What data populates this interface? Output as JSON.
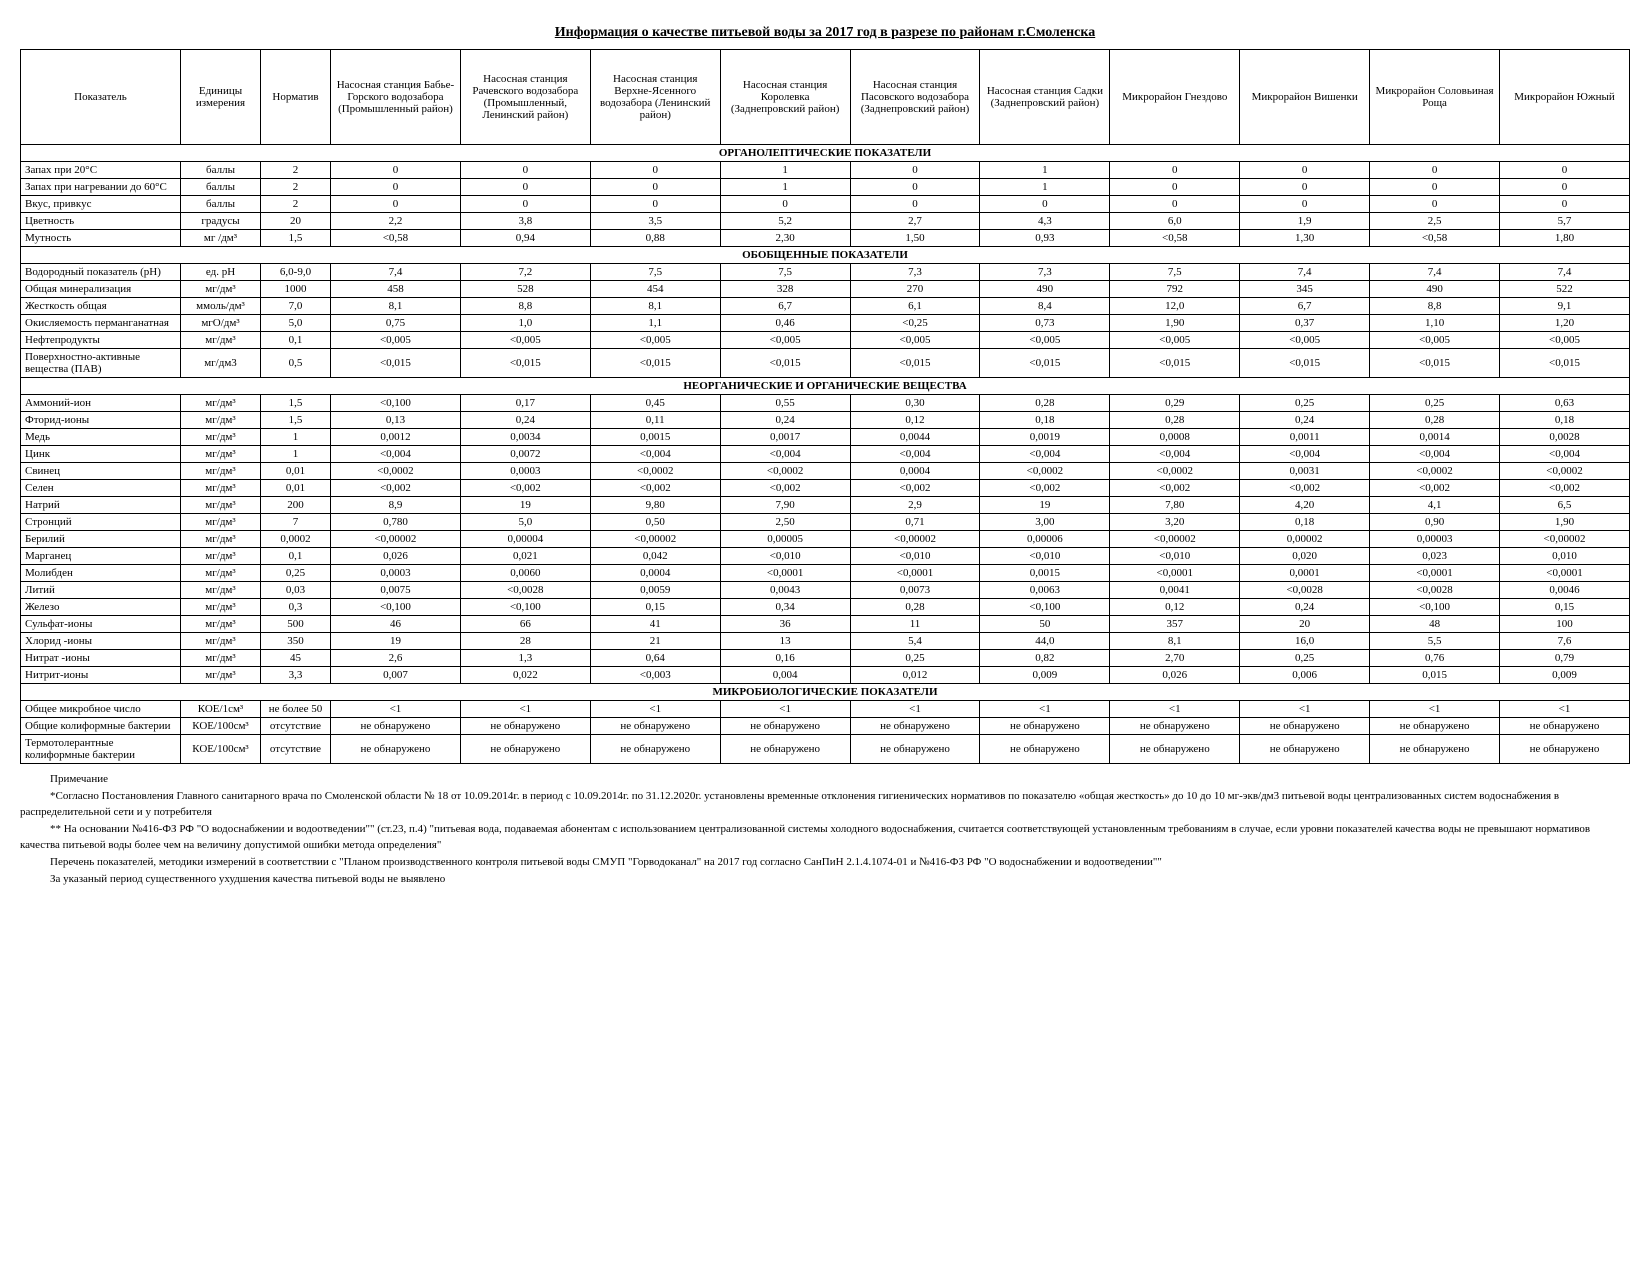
{
  "title": "Информация о качестве питьевой воды за 2017 год в разрезе по районам г.Смоленска",
  "headers": {
    "indicator": "Показатель",
    "unit": "Единицы измерения",
    "norm": "Норматив",
    "cols": [
      "Насосная станция Бабье-Горского водозабора (Промышленный район)",
      "Насосная станция Рачевского водозабора (Промышленный, Ленинский район)",
      "Насосная станция Верхне-Ясенного водозабора (Ленинский район)",
      "Насосная станция Королевка (Заднепровский район)",
      "Насосная станция Пасовского водозабора (Заднепровский район)",
      "Насосная станция Садки (Заднепровский район)",
      "Микрорайон Гнездово",
      "Микрорайон Вишенки",
      "Микрорайон Соловьиная Роща",
      "Микрорайон Южный"
    ]
  },
  "sections": [
    {
      "title": "ОРГАНОЛЕПТИЧЕСКИЕ ПОКАЗАТЕЛИ",
      "rows": [
        {
          "name": "Запах при 20°С",
          "unit": "баллы",
          "norm": "2",
          "v": [
            "0",
            "0",
            "0",
            "1",
            "0",
            "1",
            "0",
            "0",
            "0",
            "0"
          ]
        },
        {
          "name": "Запах при нагревании до 60°С",
          "unit": "баллы",
          "norm": "2",
          "v": [
            "0",
            "0",
            "0",
            "1",
            "0",
            "1",
            "0",
            "0",
            "0",
            "0"
          ]
        },
        {
          "name": "Вкус, привкус",
          "unit": "баллы",
          "norm": "2",
          "v": [
            "0",
            "0",
            "0",
            "0",
            "0",
            "0",
            "0",
            "0",
            "0",
            "0"
          ]
        },
        {
          "name": "Цветность",
          "unit": "градусы",
          "norm": "20",
          "v": [
            "2,2",
            "3,8",
            "3,5",
            "5,2",
            "2,7",
            "4,3",
            "6,0",
            "1,9",
            "2,5",
            "5,7"
          ]
        },
        {
          "name": "Мутность",
          "unit": "мг /дм³",
          "norm": "1,5",
          "v": [
            "<0,58",
            "0,94",
            "0,88",
            "2,30",
            "1,50",
            "0,93",
            "<0,58",
            "1,30",
            "<0,58",
            "1,80"
          ]
        }
      ]
    },
    {
      "title": "ОБОБЩЕННЫЕ ПОКАЗАТЕЛИ",
      "rows": [
        {
          "name": "Водородный показатель (рН)",
          "unit": "ед. рН",
          "norm": "6,0-9,0",
          "v": [
            "7,4",
            "7,2",
            "7,5",
            "7,5",
            "7,3",
            "7,3",
            "7,5",
            "7,4",
            "7,4",
            "7,4"
          ]
        },
        {
          "name": "Общая минерализация",
          "unit": "мг/дм³",
          "norm": "1000",
          "v": [
            "458",
            "528",
            "454",
            "328",
            "270",
            "490",
            "792",
            "345",
            "490",
            "522"
          ]
        },
        {
          "name": "Жесткость общая",
          "unit": "ммоль/дм³",
          "norm": "7,0",
          "v": [
            "8,1",
            "8,8",
            "8,1",
            "6,7",
            "6,1",
            "8,4",
            "12,0",
            "6,7",
            "8,8",
            "9,1"
          ]
        },
        {
          "name": "Окисляемость перманганатная",
          "unit": "мгО/дм³",
          "norm": "5,0",
          "v": [
            "0,75",
            "1,0",
            "1,1",
            "0,46",
            "<0,25",
            "0,73",
            "1,90",
            "0,37",
            "1,10",
            "1,20"
          ]
        },
        {
          "name": "Нефтепродукты",
          "unit": "мг/дм³",
          "norm": "0,1",
          "v": [
            "<0,005",
            "<0,005",
            "<0,005",
            "<0,005",
            "<0,005",
            "<0,005",
            "<0,005",
            "<0,005",
            "<0,005",
            "<0,005"
          ]
        },
        {
          "name": "Поверхностно-активные вещества (ПАВ)",
          "unit": "мг/дм3",
          "norm": "0,5",
          "v": [
            "<0,015",
            "<0,015",
            "<0,015",
            "<0,015",
            "<0,015",
            "<0,015",
            "<0,015",
            "<0,015",
            "<0,015",
            "<0,015"
          ]
        }
      ]
    },
    {
      "title": "НЕОРГАНИЧЕСКИЕ И ОРГАНИЧЕСКИЕ ВЕЩЕСТВА",
      "rows": [
        {
          "name": "Аммоний-ион",
          "unit": "мг/дм³",
          "norm": "1,5",
          "v": [
            "<0,100",
            "0,17",
            "0,45",
            "0,55",
            "0,30",
            "0,28",
            "0,29",
            "0,25",
            "0,25",
            "0,63"
          ]
        },
        {
          "name": "Фторид-ионы",
          "unit": "мг/дм³",
          "norm": "1,5",
          "v": [
            "0,13",
            "0,24",
            "0,11",
            "0,24",
            "0,12",
            "0,18",
            "0,28",
            "0,24",
            "0,28",
            "0,18"
          ]
        },
        {
          "name": "Медь",
          "unit": "мг/дм³",
          "norm": "1",
          "v": [
            "0,0012",
            "0,0034",
            "0,0015",
            "0,0017",
            "0,0044",
            "0,0019",
            "0,0008",
            "0,0011",
            "0,0014",
            "0,0028"
          ]
        },
        {
          "name": "Цинк",
          "unit": "мг/дм³",
          "norm": "1",
          "v": [
            "<0,004",
            "0,0072",
            "<0,004",
            "<0,004",
            "<0,004",
            "<0,004",
            "<0,004",
            "<0,004",
            "<0,004",
            "<0,004"
          ]
        },
        {
          "name": "Свинец",
          "unit": "мг/дм³",
          "norm": "0,01",
          "v": [
            "<0,0002",
            "0,0003",
            "<0,0002",
            "<0,0002",
            "0,0004",
            "<0,0002",
            "<0,0002",
            "0,0031",
            "<0,0002",
            "<0,0002"
          ]
        },
        {
          "name": "Селен",
          "unit": "мг/дм³",
          "norm": "0,01",
          "v": [
            "<0,002",
            "<0,002",
            "<0,002",
            "<0,002",
            "<0,002",
            "<0,002",
            "<0,002",
            "<0,002",
            "<0,002",
            "<0,002"
          ]
        },
        {
          "name": "Натрий",
          "unit": "мг/дм³",
          "norm": "200",
          "v": [
            "8,9",
            "19",
            "9,80",
            "7,90",
            "2,9",
            "19",
            "7,80",
            "4,20",
            "4,1",
            "6,5"
          ]
        },
        {
          "name": "Стронций",
          "unit": "мг/дм³",
          "norm": "7",
          "v": [
            "0,780",
            "5,0",
            "0,50",
            "2,50",
            "0,71",
            "3,00",
            "3,20",
            "0,18",
            "0,90",
            "1,90"
          ]
        },
        {
          "name": "Берилий",
          "unit": "мг/дм³",
          "norm": "0,0002",
          "v": [
            "<0,00002",
            "0,00004",
            "<0,00002",
            "0,00005",
            "<0,00002",
            "0,00006",
            "<0,00002",
            "0,00002",
            "0,00003",
            "<0,00002"
          ]
        },
        {
          "name": "Марганец",
          "unit": "мг/дм³",
          "norm": "0,1",
          "v": [
            "0,026",
            "0,021",
            "0,042",
            "<0,010",
            "<0,010",
            "<0,010",
            "<0,010",
            "0,020",
            "0,023",
            "0,010"
          ]
        },
        {
          "name": "Молибден",
          "unit": "мг/дм³",
          "norm": "0,25",
          "v": [
            "0,0003",
            "0,0060",
            "0,0004",
            "<0,0001",
            "<0,0001",
            "0,0015",
            "<0,0001",
            "0,0001",
            "<0,0001",
            "<0,0001"
          ]
        },
        {
          "name": "Литий",
          "unit": "мг/дм³",
          "norm": "0,03",
          "v": [
            "0,0075",
            "<0,0028",
            "0,0059",
            "0,0043",
            "0,0073",
            "0,0063",
            "0,0041",
            "<0,0028",
            "<0,0028",
            "0,0046"
          ]
        },
        {
          "name": "Железо",
          "unit": "мг/дм³",
          "norm": "0,3",
          "v": [
            "<0,100",
            "<0,100",
            "0,15",
            "0,34",
            "0,28",
            "<0,100",
            "0,12",
            "0,24",
            "<0,100",
            "0,15"
          ]
        },
        {
          "name": "Сульфат-ионы",
          "unit": "мг/дм³",
          "norm": "500",
          "v": [
            "46",
            "66",
            "41",
            "36",
            "11",
            "50",
            "357",
            "20",
            "48",
            "100"
          ]
        },
        {
          "name": "Хлорид -ионы",
          "unit": "мг/дм³",
          "norm": "350",
          "v": [
            "19",
            "28",
            "21",
            "13",
            "5,4",
            "44,0",
            "8,1",
            "16,0",
            "5,5",
            "7,6"
          ]
        },
        {
          "name": "Нитрат -ионы",
          "unit": "мг/дм³",
          "norm": "45",
          "v": [
            "2,6",
            "1,3",
            "0,64",
            "0,16",
            "0,25",
            "0,82",
            "2,70",
            "0,25",
            "0,76",
            "0,79"
          ]
        },
        {
          "name": "Нитрит-ионы",
          "unit": "мг/дм³",
          "norm": "3,3",
          "v": [
            "0,007",
            "0,022",
            "<0,003",
            "0,004",
            "0,012",
            "0,009",
            "0,026",
            "0,006",
            "0,015",
            "0,009"
          ]
        }
      ]
    },
    {
      "title": "МИКРОБИОЛОГИЧЕСКИЕ ПОКАЗАТЕЛИ",
      "rows": [
        {
          "name": "Общее микробное число",
          "unit": "КОЕ/1см³",
          "norm": "не более 50",
          "v": [
            "<1",
            "<1",
            "<1",
            "<1",
            "<1",
            "<1",
            "<1",
            "<1",
            "<1",
            "<1"
          ]
        },
        {
          "name": "Общие колиформные бактерии",
          "unit": "КОЕ/100см³",
          "norm": "отсутствие",
          "v": [
            "не обнаружено",
            "не обнаружено",
            "не обнаружено",
            "не обнаружено",
            "не обнаружено",
            "не обнаружено",
            "не обнаружено",
            "не обнаружено",
            "не обнаружено",
            "не обнаружено"
          ]
        },
        {
          "name": "Термотолерантные колиформные бактерии",
          "unit": "КОЕ/100см³",
          "norm": "отсутствие",
          "v": [
            "не обнаружено",
            "не обнаружено",
            "не обнаружено",
            "не обнаружено",
            "не обнаружено",
            "не обнаружено",
            "не обнаружено",
            "не обнаружено",
            "не обнаружено",
            "не обнаружено"
          ]
        }
      ]
    }
  ],
  "notes": {
    "label": "Примечание",
    "p1": "*Согласно Постановления Главного санитарного врача по Смоленской области № 18 от 10.09.2014г. в период с 10.09.2014г. по 31.12.2020г. установлены временные отклонения гигиенических нормативов по показателю «общая жесткость» до 10 до 10 мг-экв/дм3 питьевой воды централизованных систем водоснабжения в распределительной сети и у потребителя",
    "p2": "** На основании №416-ФЗ РФ \"О водоснабжении и водоотведении\"\" (ст.23, п.4) \"питьевая вода, подаваемая абонентам с использованием централизованной системы холодного водоснабжения, считается соответствующей установленным требованиям в случае, если уровни показателей качества воды не превышают нормативов качества питьевой воды более чем на величину допустимой ошибки метода определения\"",
    "p3": "Перечень показателей, методики измерений в соответствии с \"Планом производственного контроля питьевой воды СМУП \"Горводоканал\" на 2017 год согласно СанПиН 2.1.4.1074-01 и №416-ФЗ РФ \"О водоснабжении и водоотведении\"\"",
    "p4": "За указаный период существенного ухудшения качества питьевой воды не выявлено"
  }
}
